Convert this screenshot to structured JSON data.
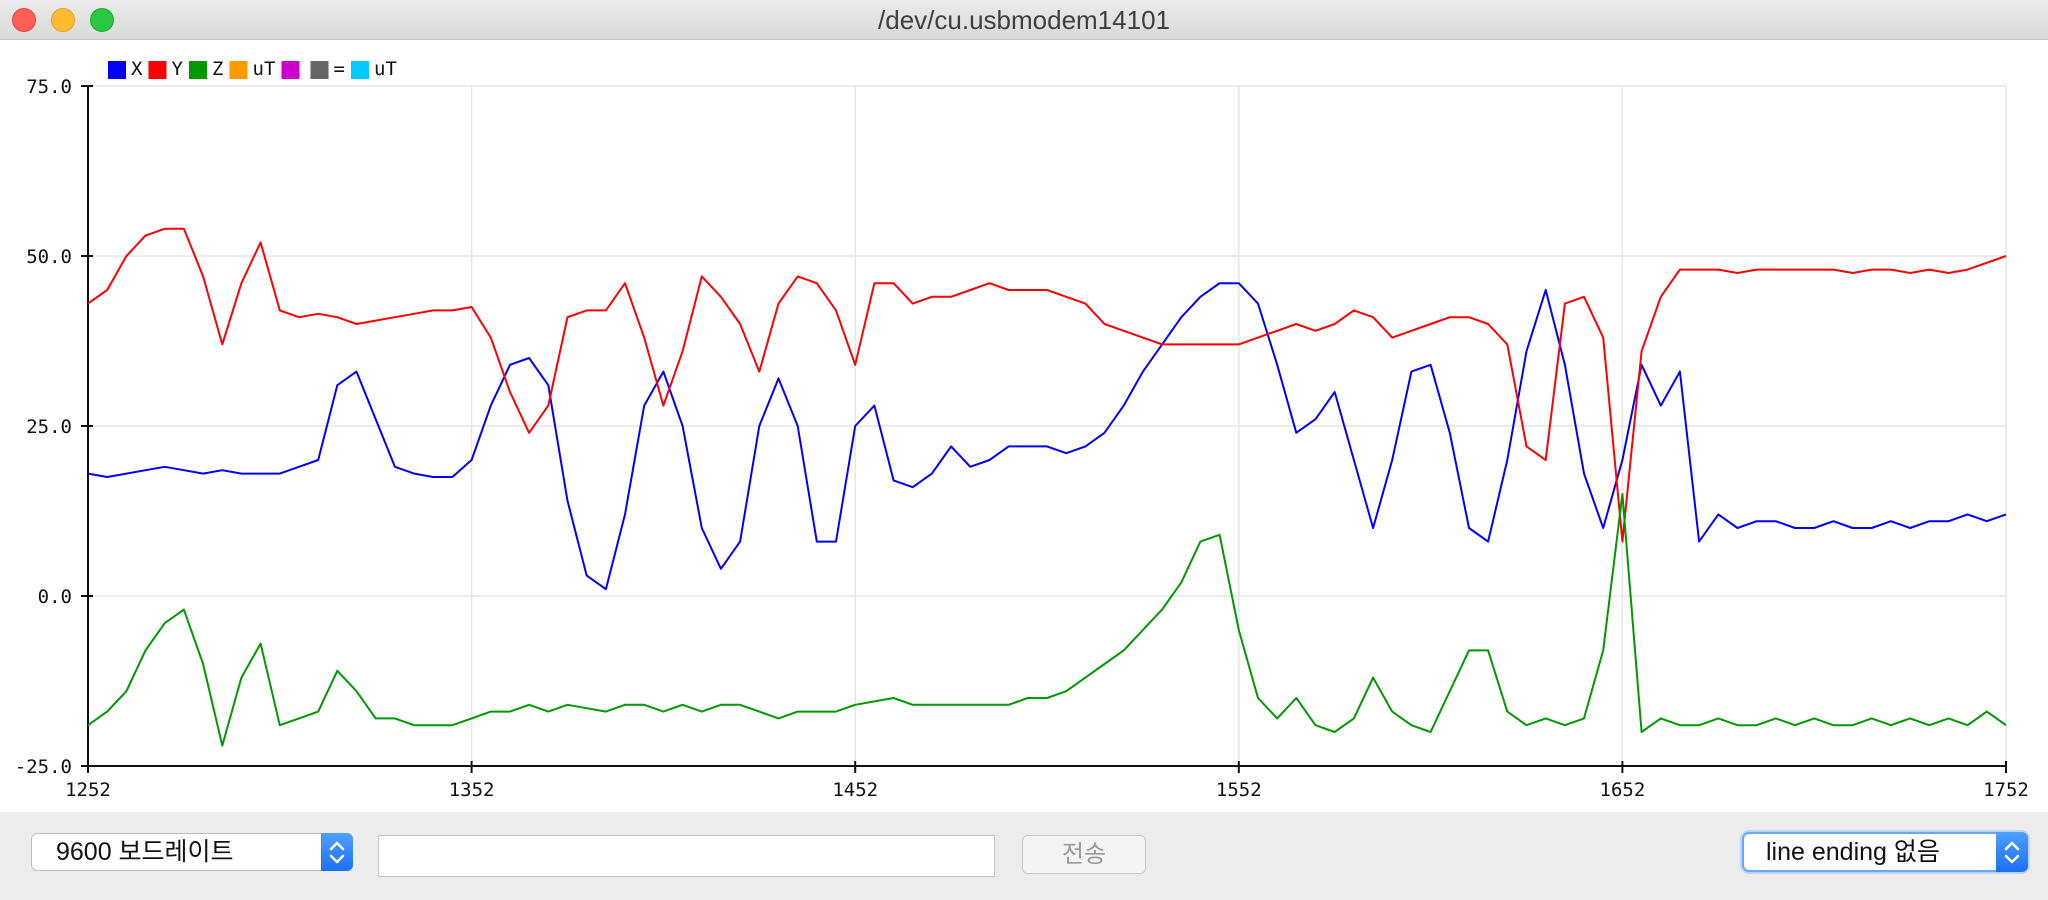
{
  "window": {
    "title": "/dev/cu.usbmodem14101"
  },
  "legend": [
    {
      "label": "X",
      "color": "#0000ff"
    },
    {
      "label": "Y",
      "color": "#ff0000"
    },
    {
      "label": "Z",
      "color": "#009900"
    },
    {
      "label": "uT",
      "color": "#ff9900"
    },
    {
      "label": "",
      "color": "#cc00cc"
    },
    {
      "label": "=",
      "color": "#666666"
    },
    {
      "label": "uT",
      "color": "#00ccff"
    }
  ],
  "chart_data": {
    "type": "line",
    "xlim": [
      1252,
      1752
    ],
    "ylim": [
      -25,
      75
    ],
    "x_ticks": [
      "1252",
      "1352",
      "1452",
      "1552",
      "1652",
      "1752"
    ],
    "y_ticks": [
      "75.0",
      "50.0",
      "25.0",
      "0.0",
      "-25.0"
    ],
    "grid": true,
    "legend_position": "top-left",
    "x": [
      1252,
      1257,
      1262,
      1267,
      1272,
      1277,
      1282,
      1287,
      1292,
      1297,
      1302,
      1307,
      1312,
      1317,
      1322,
      1327,
      1332,
      1337,
      1342,
      1347,
      1352,
      1357,
      1362,
      1367,
      1372,
      1377,
      1382,
      1387,
      1392,
      1397,
      1402,
      1407,
      1412,
      1417,
      1422,
      1427,
      1432,
      1437,
      1442,
      1447,
      1452,
      1457,
      1462,
      1467,
      1472,
      1477,
      1482,
      1487,
      1492,
      1497,
      1502,
      1507,
      1512,
      1517,
      1522,
      1527,
      1532,
      1537,
      1542,
      1547,
      1552,
      1557,
      1562,
      1567,
      1572,
      1577,
      1582,
      1587,
      1592,
      1597,
      1602,
      1607,
      1612,
      1617,
      1622,
      1627,
      1632,
      1637,
      1642,
      1647,
      1652,
      1657,
      1662,
      1667,
      1672,
      1677,
      1682,
      1687,
      1692,
      1697,
      1702,
      1707,
      1712,
      1717,
      1722,
      1727,
      1732,
      1737,
      1742,
      1747,
      1752
    ],
    "series": [
      {
        "name": "X",
        "color": "#0000ff",
        "values": [
          18,
          17.5,
          18,
          18.5,
          19,
          18.5,
          18,
          18.5,
          18,
          18,
          18,
          19,
          20,
          31,
          33,
          26,
          19,
          18,
          17.5,
          17.5,
          20,
          28,
          34,
          35,
          31,
          14,
          3,
          1,
          12,
          28,
          33,
          25,
          10,
          4,
          8,
          25,
          32,
          25,
          8,
          8,
          25,
          28,
          17,
          16,
          18,
          22,
          19,
          20,
          22,
          22,
          22,
          21,
          22,
          24,
          28,
          33,
          37,
          41,
          44,
          46,
          46,
          43,
          34,
          24,
          26,
          30,
          20,
          10,
          20,
          33,
          34,
          24,
          10,
          8,
          20,
          36,
          45,
          34,
          18,
          10,
          20,
          34,
          28,
          33,
          8,
          12,
          10,
          11,
          11,
          10,
          10,
          11,
          10,
          10,
          11,
          10,
          11,
          11,
          12,
          11,
          12
        ]
      },
      {
        "name": "Y",
        "color": "#ff0000",
        "values": [
          43,
          45,
          50,
          53,
          54,
          54,
          47,
          37,
          46,
          52,
          42,
          41,
          41.5,
          41,
          40,
          40.5,
          41,
          41.5,
          42,
          42,
          42.5,
          38,
          30,
          24,
          28,
          41,
          42,
          42,
          46,
          38,
          28,
          36,
          47,
          44,
          40,
          33,
          43,
          47,
          46,
          42,
          34,
          46,
          46,
          43,
          44,
          44,
          45,
          46,
          45,
          45,
          45,
          44,
          43,
          40,
          39,
          38,
          37,
          37,
          37,
          37,
          37,
          38,
          39,
          40,
          39,
          40,
          42,
          41,
          38,
          39,
          40,
          41,
          41,
          40,
          37,
          22,
          20,
          43,
          44,
          38,
          8,
          36,
          44,
          48,
          48,
          48,
          47.5,
          48,
          48,
          48,
          48,
          48,
          47.5,
          48,
          48,
          47.5,
          48,
          47.5,
          48,
          49,
          50
        ]
      },
      {
        "name": "Z",
        "color": "#009900",
        "values": [
          -19,
          -17,
          -14,
          -8,
          -4,
          -2,
          -10,
          -22,
          -12,
          -7,
          -19,
          -18,
          -17,
          -11,
          -14,
          -18,
          -18,
          -19,
          -19,
          -19,
          -18,
          -17,
          -17,
          -16,
          -17,
          -16,
          -16.5,
          -17,
          -16,
          -16,
          -17,
          -16,
          -17,
          -16,
          -16,
          -17,
          -18,
          -17,
          -17,
          -17,
          -16,
          -15.5,
          -15,
          -16,
          -16,
          -16,
          -16,
          -16,
          -16,
          -15,
          -15,
          -14,
          -12,
          -10,
          -8,
          -5,
          -2,
          2,
          8,
          9,
          -5,
          -15,
          -18,
          -15,
          -19,
          -20,
          -18,
          -12,
          -17,
          -19,
          -20,
          -14,
          -8,
          -8,
          -17,
          -19,
          -18,
          -19,
          -18,
          -8,
          15,
          -20,
          -18,
          -19,
          -19,
          -18,
          -19,
          -19,
          -18,
          -19,
          -18,
          -19,
          -19,
          -18,
          -19,
          -18,
          -19,
          -18,
          -19,
          -17,
          -19
        ]
      }
    ]
  },
  "controls": {
    "baud": "9600 보드레이트",
    "send_input_value": "",
    "send_label": "전송",
    "line_ending": "line ending 없음"
  }
}
